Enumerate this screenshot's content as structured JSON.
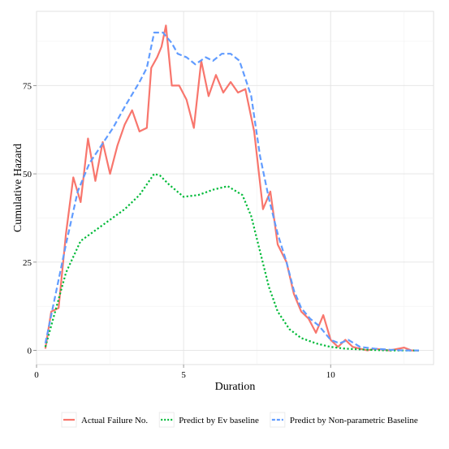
{
  "chart_data": {
    "type": "line",
    "title": "",
    "xlabel": "Duration",
    "ylabel": "Cumulative Hazard",
    "xlim": [
      0,
      13.5
    ],
    "ylim": [
      -4,
      96
    ],
    "x_ticks": [
      0,
      5,
      10
    ],
    "y_ticks": [
      0,
      25,
      50,
      75
    ],
    "x_tick_labels": [
      "0",
      "5",
      "10"
    ],
    "y_tick_labels": [
      "0",
      "25",
      "50",
      "75"
    ],
    "grid": true,
    "legend_position": "bottom",
    "series": [
      {
        "name": "Actual Failure No.",
        "color": "#F8766D",
        "dash": "solid",
        "points": [
          [
            0.3,
            0.5
          ],
          [
            0.5,
            11
          ],
          [
            0.75,
            12
          ],
          [
            1.0,
            33
          ],
          [
            1.25,
            49
          ],
          [
            1.5,
            42
          ],
          [
            1.75,
            60
          ],
          [
            2.0,
            48
          ],
          [
            2.25,
            59
          ],
          [
            2.5,
            50
          ],
          [
            2.75,
            58
          ],
          [
            3.0,
            64
          ],
          [
            3.25,
            68
          ],
          [
            3.5,
            62
          ],
          [
            3.75,
            63
          ],
          [
            3.9,
            80
          ],
          [
            4.1,
            83
          ],
          [
            4.25,
            86
          ],
          [
            4.4,
            92
          ],
          [
            4.6,
            75
          ],
          [
            4.85,
            75
          ],
          [
            5.1,
            71
          ],
          [
            5.35,
            63
          ],
          [
            5.6,
            82
          ],
          [
            5.85,
            72
          ],
          [
            6.1,
            78
          ],
          [
            6.35,
            73
          ],
          [
            6.6,
            76
          ],
          [
            6.85,
            73
          ],
          [
            7.1,
            74
          ],
          [
            7.4,
            62
          ],
          [
            7.7,
            40
          ],
          [
            7.95,
            45
          ],
          [
            8.2,
            30
          ],
          [
            8.5,
            25
          ],
          [
            8.75,
            16
          ],
          [
            9.0,
            11
          ],
          [
            9.25,
            9
          ],
          [
            9.5,
            5
          ],
          [
            9.75,
            10
          ],
          [
            10.0,
            3
          ],
          [
            10.25,
            1
          ],
          [
            10.5,
            3
          ],
          [
            10.75,
            1
          ],
          [
            11.0,
            0.5
          ],
          [
            11.25,
            0
          ],
          [
            11.5,
            0.5
          ],
          [
            12.0,
            0
          ],
          [
            12.5,
            0.8
          ],
          [
            12.75,
            0
          ],
          [
            13.0,
            0
          ]
        ]
      },
      {
        "name": "Predict by Ev baseline",
        "color": "#00BA38",
        "dash": "dotted",
        "points": [
          [
            0.3,
            1
          ],
          [
            0.6,
            10
          ],
          [
            1.0,
            22
          ],
          [
            1.5,
            31
          ],
          [
            2.0,
            34
          ],
          [
            2.5,
            37
          ],
          [
            3.0,
            40
          ],
          [
            3.5,
            44
          ],
          [
            4.0,
            50
          ],
          [
            4.2,
            49.5
          ],
          [
            4.5,
            47
          ],
          [
            5.0,
            43.5
          ],
          [
            5.5,
            44
          ],
          [
            6.0,
            45.5
          ],
          [
            6.5,
            46.5
          ],
          [
            7.0,
            44
          ],
          [
            7.3,
            38
          ],
          [
            7.6,
            28
          ],
          [
            7.9,
            18
          ],
          [
            8.2,
            11
          ],
          [
            8.6,
            6
          ],
          [
            9.0,
            3.5
          ],
          [
            9.5,
            2
          ],
          [
            10.0,
            1
          ],
          [
            10.5,
            0.5
          ],
          [
            11.0,
            0.3
          ],
          [
            11.5,
            0.1
          ],
          [
            12.0,
            0
          ],
          [
            12.5,
            0
          ],
          [
            13.0,
            0
          ]
        ]
      },
      {
        "name": "Predict by Non-parametric Baseline",
        "color": "#619CFF",
        "dash": "dashed",
        "points": [
          [
            0.3,
            2
          ],
          [
            0.6,
            14
          ],
          [
            1.0,
            30
          ],
          [
            1.4,
            45
          ],
          [
            1.8,
            53
          ],
          [
            2.2,
            58
          ],
          [
            2.6,
            63
          ],
          [
            3.0,
            69
          ],
          [
            3.5,
            76
          ],
          [
            3.75,
            80
          ],
          [
            4.0,
            90
          ],
          [
            4.3,
            90
          ],
          [
            4.6,
            87
          ],
          [
            4.8,
            84
          ],
          [
            5.1,
            83
          ],
          [
            5.4,
            81
          ],
          [
            5.75,
            83
          ],
          [
            6.0,
            82
          ],
          [
            6.3,
            84
          ],
          [
            6.6,
            84
          ],
          [
            6.9,
            82
          ],
          [
            7.3,
            72
          ],
          [
            7.6,
            55
          ],
          [
            7.9,
            43
          ],
          [
            8.2,
            33
          ],
          [
            8.5,
            25
          ],
          [
            8.75,
            17
          ],
          [
            9.0,
            12
          ],
          [
            9.3,
            9
          ],
          [
            9.6,
            7
          ],
          [
            10.0,
            3
          ],
          [
            10.3,
            2
          ],
          [
            10.6,
            3
          ],
          [
            11.0,
            1
          ],
          [
            11.5,
            0.5
          ],
          [
            12.0,
            0.2
          ],
          [
            12.5,
            0
          ],
          [
            13.0,
            0
          ]
        ]
      }
    ]
  }
}
